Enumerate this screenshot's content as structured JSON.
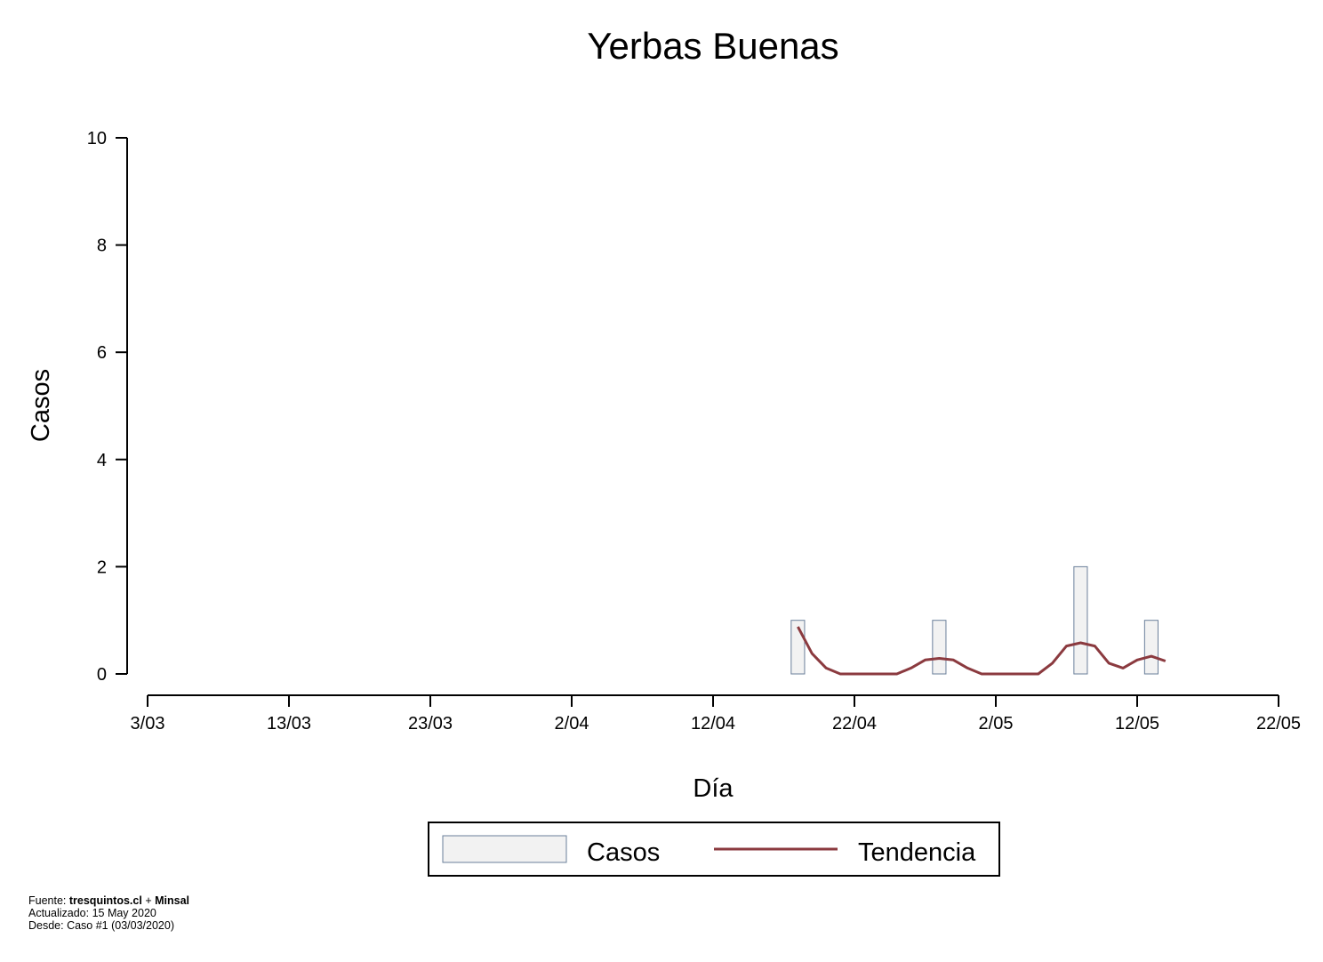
{
  "chart_data": {
    "type": "bar",
    "title": "Yerbas Buenas",
    "xlabel": "Día",
    "ylabel": "Casos",
    "x_start": "2020-03-03",
    "x_end": "2020-05-22",
    "ylim": [
      0,
      10
    ],
    "yticks": [
      0,
      2,
      4,
      6,
      8,
      10
    ],
    "xticks": [
      {
        "date": "2020-03-03",
        "label": "3/03"
      },
      {
        "date": "2020-03-13",
        "label": "13/03"
      },
      {
        "date": "2020-03-23",
        "label": "23/03"
      },
      {
        "date": "2020-04-02",
        "label": "2/04"
      },
      {
        "date": "2020-04-12",
        "label": "12/04"
      },
      {
        "date": "2020-04-22",
        "label": "22/04"
      },
      {
        "date": "2020-05-02",
        "label": "2/05"
      },
      {
        "date": "2020-05-12",
        "label": "12/05"
      },
      {
        "date": "2020-05-22",
        "label": "22/05"
      }
    ],
    "grid": false,
    "legend_position": "bottom-center",
    "series": [
      {
        "name": "Casos",
        "type": "bar",
        "color": "#f2f2f2",
        "edge_color": "#6a7f9a",
        "points": [
          {
            "date": "2020-04-18",
            "value": 1
          },
          {
            "date": "2020-04-28",
            "value": 1
          },
          {
            "date": "2020-05-08",
            "value": 2
          },
          {
            "date": "2020-05-13",
            "value": 1
          }
        ]
      },
      {
        "name": "Tendencia",
        "type": "line",
        "color": "#8b3a3f",
        "points": [
          {
            "date": "2020-04-18",
            "value": 0.88
          },
          {
            "date": "2020-04-19",
            "value": 0.38
          },
          {
            "date": "2020-04-20",
            "value": 0.11
          },
          {
            "date": "2020-04-21",
            "value": 0.0
          },
          {
            "date": "2020-04-22",
            "value": 0.0
          },
          {
            "date": "2020-04-23",
            "value": 0.0
          },
          {
            "date": "2020-04-24",
            "value": 0.0
          },
          {
            "date": "2020-04-25",
            "value": 0.0
          },
          {
            "date": "2020-04-26",
            "value": 0.11
          },
          {
            "date": "2020-04-27",
            "value": 0.26
          },
          {
            "date": "2020-04-28",
            "value": 0.29
          },
          {
            "date": "2020-04-29",
            "value": 0.26
          },
          {
            "date": "2020-04-30",
            "value": 0.11
          },
          {
            "date": "2020-05-01",
            "value": 0.0
          },
          {
            "date": "2020-05-02",
            "value": 0.0
          },
          {
            "date": "2020-05-03",
            "value": 0.0
          },
          {
            "date": "2020-05-04",
            "value": 0.0
          },
          {
            "date": "2020-05-05",
            "value": 0.0
          },
          {
            "date": "2020-05-06",
            "value": 0.2
          },
          {
            "date": "2020-05-07",
            "value": 0.52
          },
          {
            "date": "2020-05-08",
            "value": 0.58
          },
          {
            "date": "2020-05-09",
            "value": 0.52
          },
          {
            "date": "2020-05-10",
            "value": 0.2
          },
          {
            "date": "2020-05-11",
            "value": 0.11
          },
          {
            "date": "2020-05-12",
            "value": 0.26
          },
          {
            "date": "2020-05-13",
            "value": 0.33
          },
          {
            "date": "2020-05-14",
            "value": 0.24
          }
        ]
      }
    ]
  },
  "footer": {
    "source_prefix": "Fuente: ",
    "source_site": "tresquintos.cl",
    "source_join": " + ",
    "source_org": "Minsal",
    "updated": "Actualizado: 15 May 2020",
    "since": "Desde: Caso #1  (03/03/2020)"
  }
}
